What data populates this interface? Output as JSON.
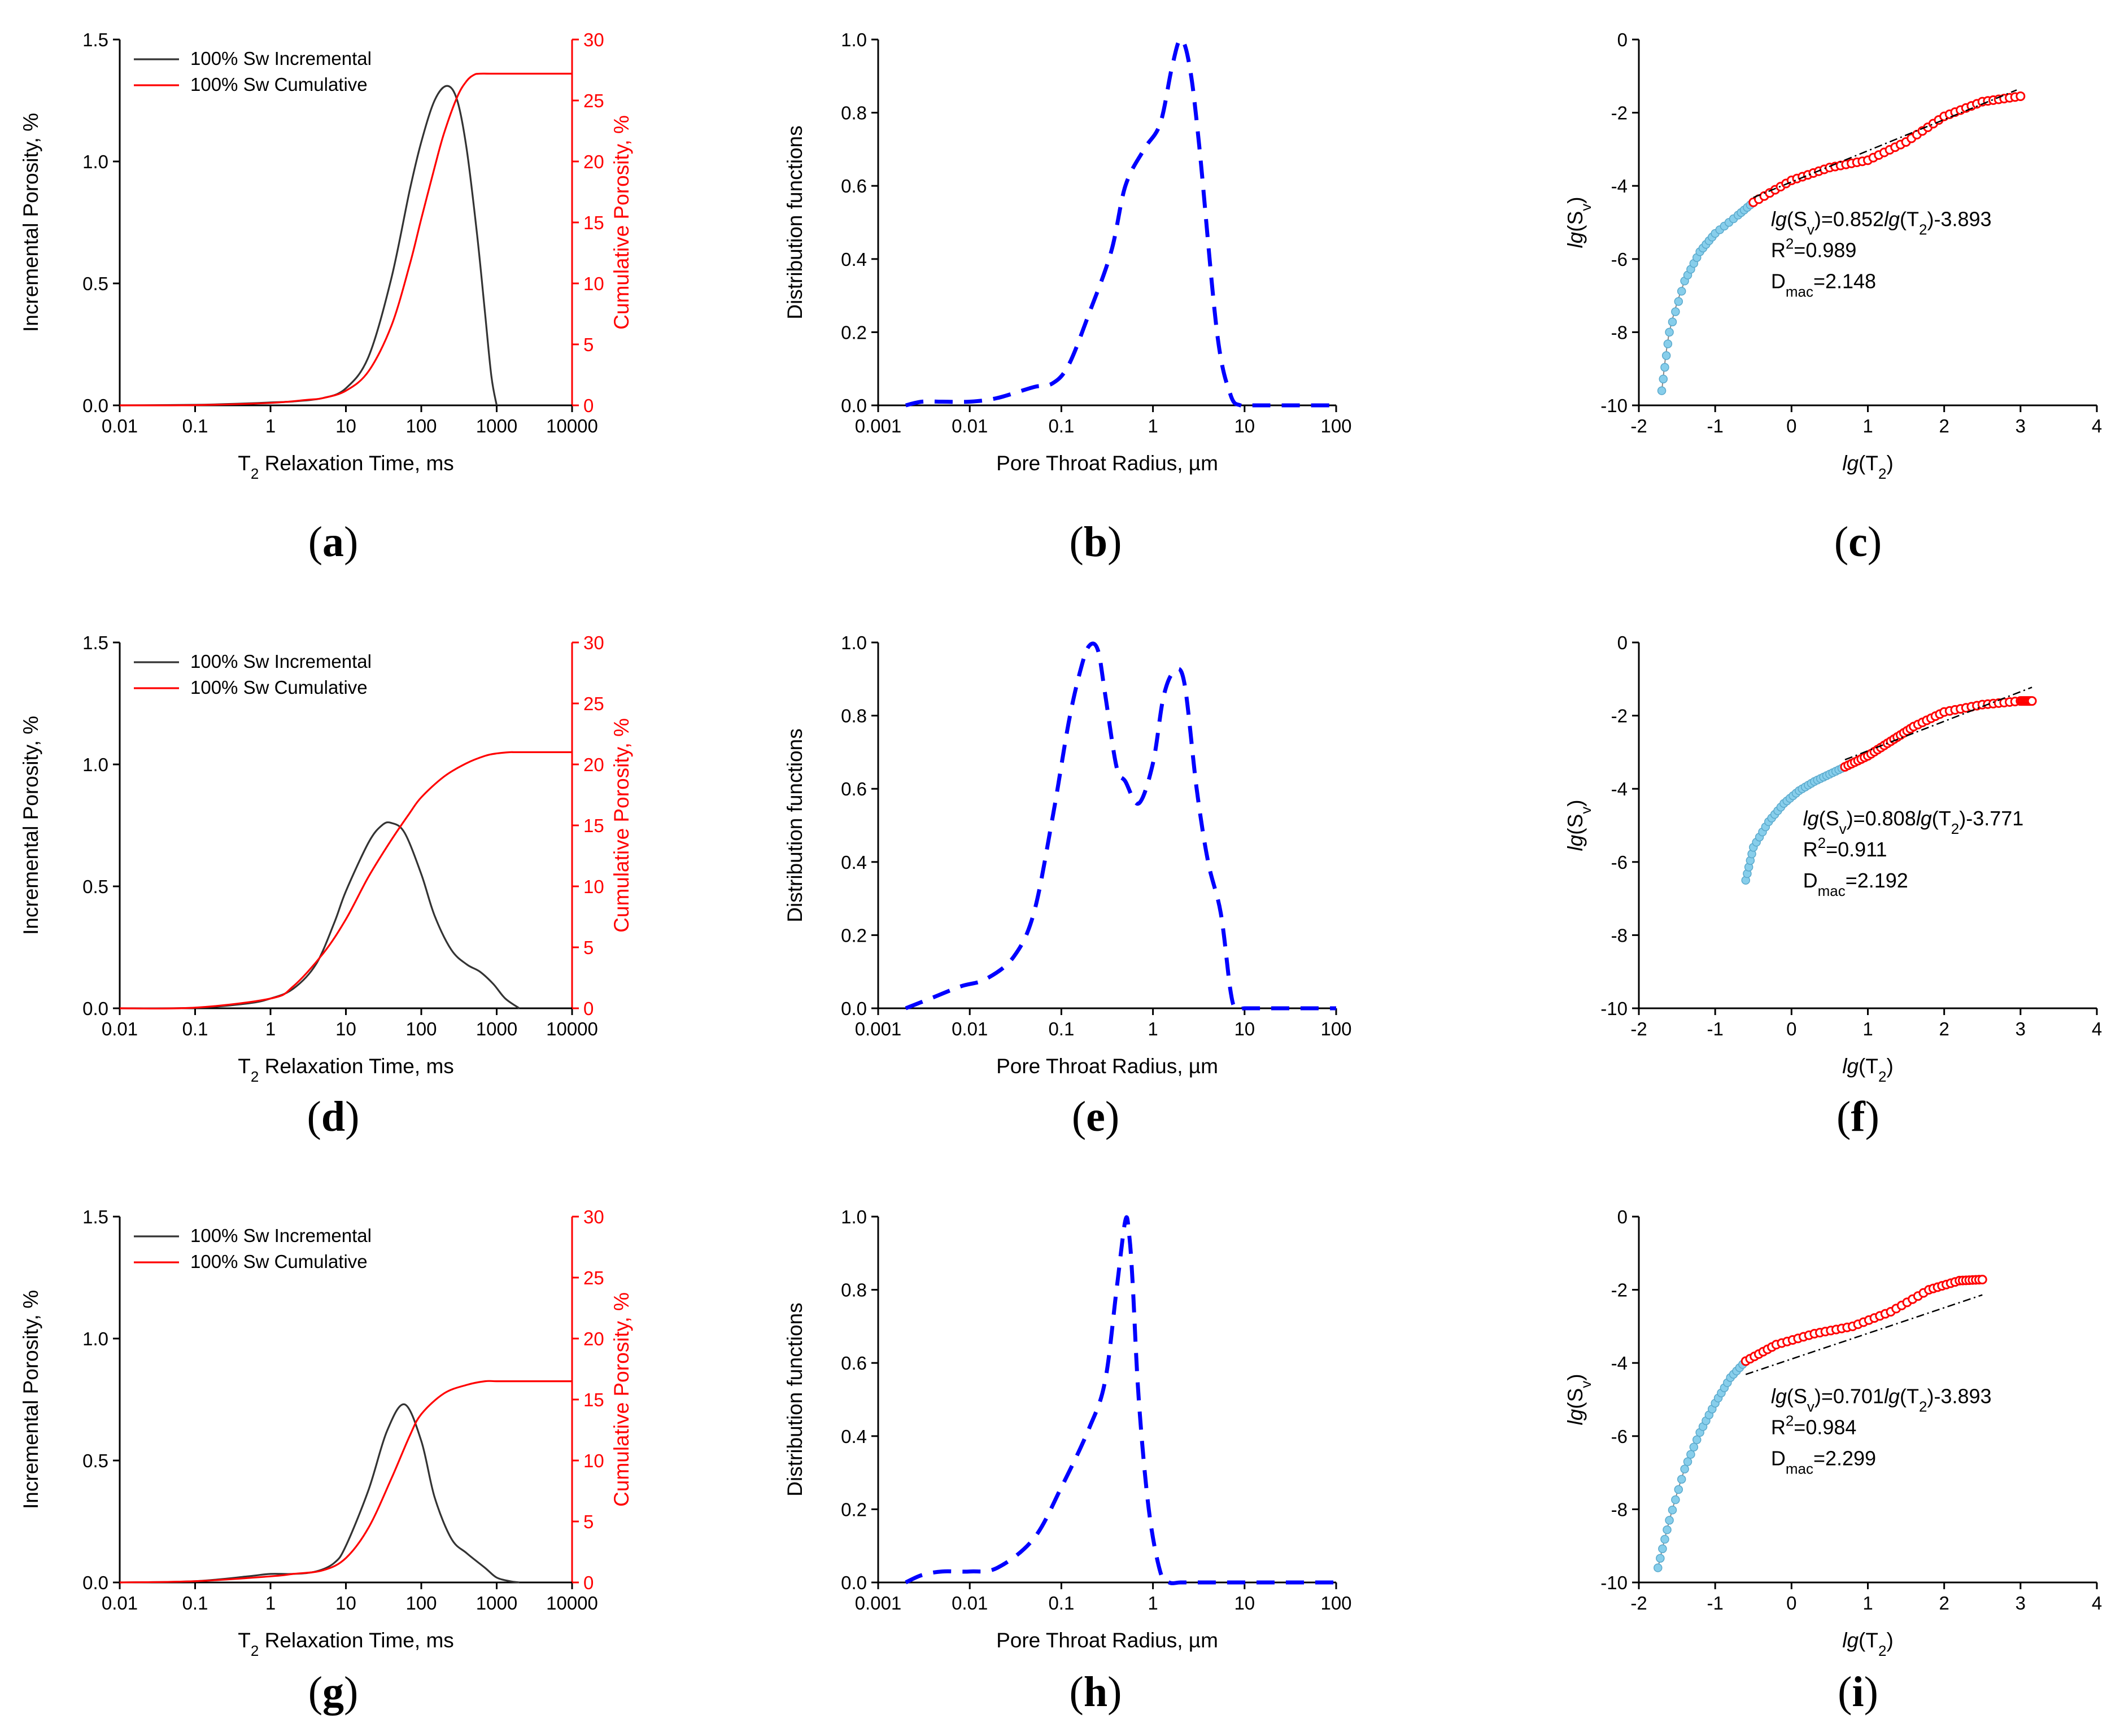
{
  "chart_data": [
    {
      "id": "a",
      "type": "line",
      "label": "a",
      "xlabel": "T2 Relaxation Time, ms",
      "ylabel": "Incremental Porosity, %",
      "y2label": "Cumulative Porosity, %",
      "xscale": "log",
      "xlim": [
        0.01,
        10000
      ],
      "ylim": [
        0,
        1.5
      ],
      "y2lim": [
        0,
        30
      ],
      "xticks": [
        "0.01",
        "0.1",
        "1",
        "10",
        "100",
        "1000",
        "10000"
      ],
      "yticks": [
        "0.0",
        "0.5",
        "1.0",
        "1.5"
      ],
      "y2ticks": [
        "0",
        "5",
        "10",
        "15",
        "20",
        "25",
        "30"
      ],
      "legend": [
        "100% Sw Incremental",
        "100% Sw Cumulative"
      ],
      "series": [
        {
          "name": "100% Sw Incremental",
          "color": "#333333",
          "axis": "left",
          "x": [
            0.01,
            0.1,
            0.5,
            1,
            2,
            5,
            10,
            20,
            40,
            70,
            100,
            150,
            220,
            300,
            400,
            550,
            700,
            850,
            1000
          ],
          "y": [
            0,
            0.002,
            0.008,
            0.012,
            0.016,
            0.03,
            0.07,
            0.2,
            0.52,
            0.88,
            1.08,
            1.25,
            1.31,
            1.25,
            1.05,
            0.7,
            0.38,
            0.12,
            0
          ]
        },
        {
          "name": "100% Sw Cumulative",
          "color": "#ff0000",
          "axis": "right",
          "x": [
            0.01,
            0.1,
            1,
            3,
            5,
            10,
            20,
            40,
            70,
            100,
            150,
            200,
            300,
            400,
            500,
            600,
            1000,
            10000
          ],
          "y": [
            0,
            0.02,
            0.2,
            0.45,
            0.6,
            1.2,
            2.8,
            6.5,
            11.5,
            15.3,
            19.5,
            22.3,
            25.3,
            26.6,
            27.1,
            27.2,
            27.2,
            27.2
          ]
        }
      ]
    },
    {
      "id": "b",
      "type": "line",
      "label": "b",
      "xlabel": "Pore Throat Radius, µm",
      "ylabel": "Distribution functions",
      "xscale": "log",
      "xlim": [
        0.001,
        100
      ],
      "ylim": [
        0,
        1.0
      ],
      "xticks": [
        "0.001",
        "0.01",
        "0.1",
        "1",
        "10",
        "100"
      ],
      "yticks": [
        "0.0",
        "0.2",
        "0.4",
        "0.6",
        "0.8",
        "1.0"
      ],
      "series": [
        {
          "name": "distribution",
          "color": "#0000ff",
          "style": "dashed",
          "x": [
            0.002,
            0.003,
            0.005,
            0.01,
            0.02,
            0.05,
            0.08,
            0.12,
            0.2,
            0.35,
            0.5,
            0.8,
            1.2,
            1.6,
            2.0,
            2.5,
            3.2,
            5,
            7,
            9,
            12,
            15,
            20,
            30,
            50,
            80,
            100
          ],
          "y": [
            0,
            0.01,
            0.01,
            0.01,
            0.02,
            0.05,
            0.06,
            0.11,
            0.25,
            0.42,
            0.6,
            0.7,
            0.77,
            0.92,
            1.0,
            0.93,
            0.71,
            0.2,
            0.03,
            0,
            0,
            0,
            0,
            0,
            0,
            0,
            0
          ]
        }
      ]
    },
    {
      "id": "c",
      "type": "scatter",
      "label": "c",
      "xlabel": "lg(T2)",
      "ylabel": "lg(Sv)",
      "xlim": [
        -2,
        4
      ],
      "ylim": [
        -10,
        0
      ],
      "xticks": [
        "-2",
        "-1",
        "0",
        "1",
        "2",
        "3",
        "4"
      ],
      "yticks": [
        "0",
        "-2",
        "-4",
        "-6",
        "-8",
        "-10"
      ],
      "blue_segment": [
        [
          -1.7,
          -9.6
        ],
        [
          -1.6,
          -8.0
        ],
        [
          -1.4,
          -6.6
        ],
        [
          -1.2,
          -5.8
        ],
        [
          -1.0,
          -5.3
        ],
        [
          -0.7,
          -4.8
        ],
        [
          -0.5,
          -4.45
        ]
      ],
      "red_segment": [
        [
          -0.5,
          -4.45
        ],
        [
          0,
          -3.85
        ],
        [
          0.5,
          -3.5
        ],
        [
          1,
          -3.3
        ],
        [
          1.5,
          -2.8
        ],
        [
          2,
          -2.1
        ],
        [
          2.5,
          -1.7
        ],
        [
          3.0,
          -1.55
        ]
      ],
      "fit": {
        "slope": 0.852,
        "intercept": -3.893,
        "x_range": [
          -0.5,
          2.95
        ]
      },
      "annotation": {
        "eq": "=0.852",
        "eq_end": "-3.893",
        "r2": "=0.989",
        "d": "=2.148"
      }
    },
    {
      "id": "d",
      "type": "line",
      "label": "d",
      "xlabel": "T2 Relaxation Time, ms",
      "ylabel": "Incremental Porosity, %",
      "y2label": "Cumulative Porosity, %",
      "xscale": "log",
      "xlim": [
        0.01,
        10000
      ],
      "ylim": [
        0,
        1.5
      ],
      "y2lim": [
        0,
        30
      ],
      "xticks": [
        "0.01",
        "0.1",
        "1",
        "10",
        "100",
        "1000",
        "10000"
      ],
      "yticks": [
        "0.0",
        "0.5",
        "1.0",
        "1.5"
      ],
      "y2ticks": [
        "0",
        "5",
        "10",
        "15",
        "20",
        "25",
        "30"
      ],
      "legend": [
        "100% Sw Incremental",
        "100% Sw Cumulative"
      ],
      "series": [
        {
          "name": "100% Sw Incremental",
          "color": "#333333",
          "axis": "left",
          "x": [
            0.01,
            0.1,
            0.5,
            1,
            2,
            4,
            7,
            10,
            20,
            30,
            40,
            60,
            100,
            150,
            250,
            400,
            600,
            900,
            1300,
            2000
          ],
          "y": [
            0,
            0.002,
            0.02,
            0.04,
            0.08,
            0.18,
            0.35,
            0.48,
            0.68,
            0.75,
            0.76,
            0.72,
            0.55,
            0.38,
            0.24,
            0.18,
            0.15,
            0.1,
            0.04,
            0
          ]
        },
        {
          "name": "100% Sw Cumulative",
          "color": "#ff0000",
          "axis": "right",
          "x": [
            0.01,
            0.1,
            1,
            2,
            5,
            10,
            20,
            40,
            70,
            100,
            200,
            400,
            700,
            1000,
            1500,
            2000,
            10000
          ],
          "y": [
            0,
            0.05,
            0.8,
            1.8,
            4.5,
            7.3,
            10.8,
            13.8,
            16.0,
            17.3,
            19.0,
            20.1,
            20.7,
            20.9,
            21.0,
            21.0,
            21.0
          ]
        }
      ]
    },
    {
      "id": "e",
      "type": "line",
      "label": "e",
      "xlabel": "Pore Throat Radius, µm",
      "ylabel": "Distribution functions",
      "xscale": "log",
      "xlim": [
        0.001,
        100
      ],
      "ylim": [
        0,
        1.0
      ],
      "xticks": [
        "0.001",
        "0.01",
        "0.1",
        "1",
        "10",
        "100"
      ],
      "yticks": [
        "0.0",
        "0.2",
        "0.4",
        "0.6",
        "0.8",
        "1.0"
      ],
      "series": [
        {
          "name": "distribution",
          "color": "#0000ff",
          "style": "dashed",
          "x": [
            0.002,
            0.004,
            0.008,
            0.015,
            0.03,
            0.05,
            0.08,
            0.12,
            0.16,
            0.2,
            0.25,
            0.3,
            0.4,
            0.5,
            0.7,
            1.0,
            1.3,
            1.7,
            2.2,
            3,
            4,
            5.5,
            7,
            8,
            10,
            15,
            20,
            30,
            50,
            100
          ],
          "y": [
            0,
            0.03,
            0.06,
            0.08,
            0.14,
            0.26,
            0.52,
            0.78,
            0.92,
            0.99,
            0.98,
            0.86,
            0.66,
            0.62,
            0.56,
            0.67,
            0.85,
            0.92,
            0.89,
            0.6,
            0.4,
            0.26,
            0.05,
            0,
            0,
            0,
            0,
            0,
            0,
            0
          ]
        }
      ]
    },
    {
      "id": "f",
      "type": "scatter",
      "label": "f",
      "xlabel": "lg(T2)",
      "ylabel": "lg(Sv)",
      "xlim": [
        -2,
        4
      ],
      "ylim": [
        -10,
        0
      ],
      "xticks": [
        "-2",
        "-1",
        "0",
        "1",
        "2",
        "3",
        "4"
      ],
      "yticks": [
        "0",
        "-2",
        "-4",
        "-6",
        "-8",
        "-10"
      ],
      "blue_segment": [
        [
          -0.6,
          -6.5
        ],
        [
          -0.5,
          -5.6
        ],
        [
          -0.3,
          -4.9
        ],
        [
          -0.1,
          -4.4
        ],
        [
          0.1,
          -4.05
        ],
        [
          0.3,
          -3.8
        ],
        [
          0.5,
          -3.6
        ],
        [
          0.7,
          -3.4
        ]
      ],
      "red_segment": [
        [
          0.7,
          -3.4
        ],
        [
          1.0,
          -3.1
        ],
        [
          1.3,
          -2.7
        ],
        [
          1.6,
          -2.3
        ],
        [
          2.0,
          -1.9
        ],
        [
          2.5,
          -1.7
        ],
        [
          3.0,
          -1.6
        ],
        [
          3.15,
          -1.6
        ]
      ],
      "fit": {
        "slope": 0.808,
        "intercept": -3.771,
        "x_range": [
          0.7,
          3.15
        ]
      },
      "annotation": {
        "eq": "=0.808",
        "eq_end": "-3.771",
        "r2": "=0.911",
        "d": "=2.192"
      }
    },
    {
      "id": "g",
      "type": "line",
      "label": "g",
      "xlabel": "T2 Relaxation Time, ms",
      "ylabel": "Incremental Porosity, %",
      "y2label": "Cumulative Porosity, %",
      "xscale": "log",
      "xlim": [
        0.01,
        10000
      ],
      "ylim": [
        0,
        1.5
      ],
      "y2lim": [
        0,
        30
      ],
      "xticks": [
        "0.01",
        "0.1",
        "1",
        "10",
        "100",
        "1000",
        "10000"
      ],
      "yticks": [
        "0.0",
        "0.5",
        "1.0",
        "1.5"
      ],
      "y2ticks": [
        "0",
        "5",
        "10",
        "15",
        "20",
        "25",
        "30"
      ],
      "legend": [
        "100% Sw Incremental",
        "100% Sw Cumulative"
      ],
      "series": [
        {
          "name": "100% Sw Incremental",
          "color": "#333333",
          "axis": "left",
          "x": [
            0.01,
            0.1,
            0.5,
            1,
            2,
            4,
            7,
            10,
            20,
            35,
            60,
            100,
            150,
            250,
            400,
            700,
            1000,
            1500,
            2000
          ],
          "y": [
            0,
            0.005,
            0.025,
            0.035,
            0.035,
            0.045,
            0.08,
            0.15,
            0.38,
            0.62,
            0.73,
            0.58,
            0.35,
            0.18,
            0.12,
            0.06,
            0.02,
            0.005,
            0
          ]
        },
        {
          "name": "100% Sw Cumulative",
          "color": "#ff0000",
          "axis": "right",
          "x": [
            0.01,
            0.1,
            1,
            2,
            5,
            10,
            20,
            40,
            70,
            100,
            200,
            400,
            700,
            1000,
            2000,
            10000
          ],
          "y": [
            0,
            0.1,
            0.5,
            0.7,
            1.0,
            2.0,
            4.5,
            8.5,
            12.0,
            13.8,
            15.5,
            16.2,
            16.5,
            16.5,
            16.5,
            16.5
          ]
        }
      ]
    },
    {
      "id": "h",
      "type": "line",
      "label": "h",
      "xlabel": "Pore Throat Radius, µm",
      "ylabel": "Distribution functions",
      "xscale": "log",
      "xlim": [
        0.001,
        100
      ],
      "ylim": [
        0,
        1.0
      ],
      "xticks": [
        "0.001",
        "0.01",
        "0.1",
        "1",
        "10",
        "100"
      ],
      "yticks": [
        "0.0",
        "0.2",
        "0.4",
        "0.6",
        "0.8",
        "1.0"
      ],
      "series": [
        {
          "name": "distribution",
          "color": "#0000ff",
          "style": "dashed",
          "x": [
            0.002,
            0.003,
            0.005,
            0.01,
            0.02,
            0.05,
            0.1,
            0.2,
            0.3,
            0.4,
            0.5,
            0.55,
            0.6,
            0.7,
            0.9,
            1.2,
            1.5,
            2,
            3,
            5,
            10,
            20,
            50,
            100
          ],
          "y": [
            0,
            0.02,
            0.03,
            0.03,
            0.04,
            0.12,
            0.26,
            0.42,
            0.55,
            0.8,
            0.99,
            0.95,
            0.82,
            0.5,
            0.2,
            0.03,
            0,
            0,
            0,
            0,
            0,
            0,
            0,
            0
          ]
        }
      ]
    },
    {
      "id": "i",
      "type": "scatter",
      "label": "i",
      "xlabel": "lg(T2)",
      "ylabel": "lg(Sv)",
      "xlim": [
        -2,
        4
      ],
      "ylim": [
        -10,
        0
      ],
      "xticks": [
        "-2",
        "-1",
        "0",
        "1",
        "2",
        "3",
        "4"
      ],
      "yticks": [
        "0",
        "-2",
        "-4",
        "-6",
        "-8",
        "-10"
      ],
      "blue_segment": [
        [
          -1.75,
          -9.6
        ],
        [
          -1.6,
          -8.3
        ],
        [
          -1.4,
          -6.9
        ],
        [
          -1.2,
          -5.9
        ],
        [
          -1.0,
          -5.1
        ],
        [
          -0.8,
          -4.4
        ],
        [
          -0.6,
          -3.95
        ]
      ],
      "red_segment": [
        [
          -0.6,
          -3.95
        ],
        [
          -0.2,
          -3.5
        ],
        [
          0.3,
          -3.2
        ],
        [
          0.8,
          -3.0
        ],
        [
          1.3,
          -2.6
        ],
        [
          1.8,
          -2.0
        ],
        [
          2.2,
          -1.75
        ],
        [
          2.5,
          -1.72
        ]
      ],
      "fit": {
        "slope": 0.701,
        "intercept": -3.893,
        "x_range": [
          -0.6,
          2.5
        ]
      },
      "annotation": {
        "eq": "=0.701",
        "eq_end": "-3.893",
        "r2": "=0.984",
        "d": "=2.299"
      }
    }
  ],
  "colors": {
    "incremental": "#333333",
    "cumulative": "#ff0000",
    "distribution": "#0000ff",
    "blue_points": "#87ceeb",
    "red_points": "#ff0000",
    "fit": "#000000"
  },
  "lg_text": "lg",
  "sv_text": "S",
  "sv_sub": "v",
  "t2_text": "T",
  "t2_sub": "2",
  "r_text": "R",
  "r_sup": "2",
  "d_text": "D",
  "d_sub": "mac"
}
